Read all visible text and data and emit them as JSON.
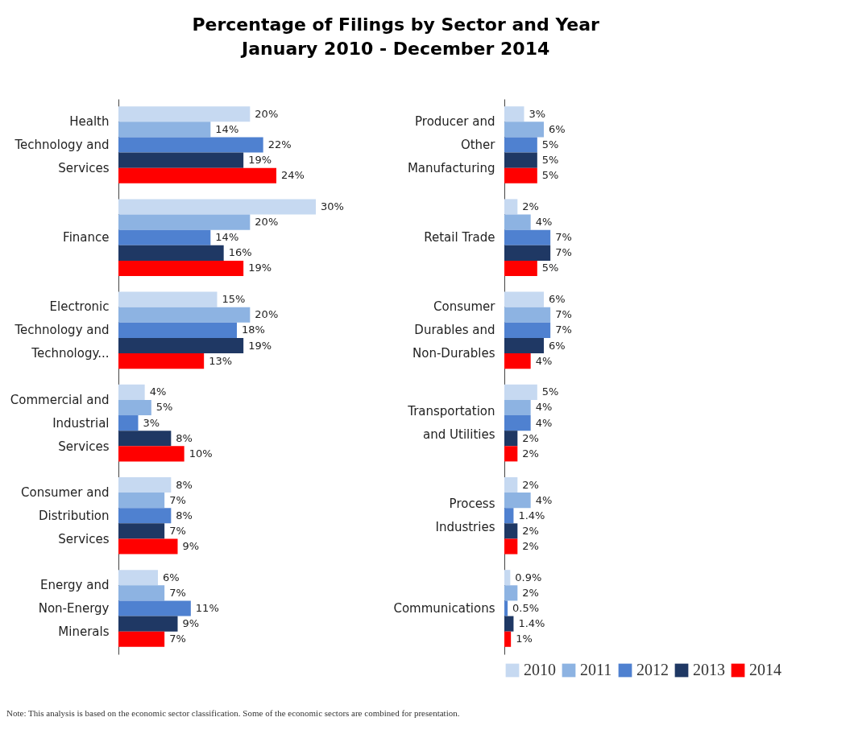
{
  "chart_data": [
    {
      "type": "bar",
      "orientation": "horizontal",
      "title": "Percentage of Filings by Sector and Year",
      "subtitle": "January 2010 - December 2014",
      "categories": [
        "Health Technology and Services",
        "Finance",
        "Electronic Technology and Technology...",
        "Commercial and Industrial Services",
        "Consumer and Distribution Services",
        "Energy and Non-Energy Minerals"
      ],
      "series": [
        {
          "color": "#c6d9f1",
          "values": [
            20,
            30,
            15,
            4,
            8,
            6
          ],
          "value_labels": [
            "20%",
            "30%",
            "15%",
            "4%",
            "8%",
            "6%"
          ]
        },
        {
          "color": "#8db3e2",
          "values": [
            14,
            20,
            20,
            5,
            7,
            7
          ],
          "value_labels": [
            "14%",
            "20%",
            "20%",
            "5%",
            "7%",
            "7%"
          ]
        },
        {
          "color": "#4f81d0",
          "values": [
            22,
            14,
            18,
            3,
            8,
            11
          ],
          "value_labels": [
            "22%",
            "14%",
            "18%",
            "3%",
            "8%",
            "11%"
          ]
        },
        {
          "color": "#1f3864",
          "values": [
            19,
            16,
            19,
            8,
            7,
            9
          ],
          "value_labels": [
            "19%",
            "16%",
            "19%",
            "8%",
            "7%",
            "9%"
          ]
        },
        {
          "color": "#ff0000",
          "values": [
            24,
            19,
            13,
            10,
            9,
            7
          ],
          "value_labels": [
            "24%",
            "19%",
            "13%",
            "10%",
            "9%",
            "7%"
          ]
        }
      ],
      "annotations": [
        "Note: This analysis is based on the economic sector classification. Some of the economic sectors are combined for presentation."
      ]
    },
    {
      "type": "bar",
      "orientation": "horizontal",
      "legend": "bottom",
      "categories": [
        "Producer and Other Manufacturing",
        "Retail Trade",
        "Consumer Durables and Non-Durables",
        "Transportation and Utilities",
        "Process Industries",
        "Communications"
      ],
      "series": [
        {
          "name": "2010",
          "color": "#c6d9f1",
          "values": [
            3,
            2,
            6,
            5,
            2,
            0.9
          ],
          "value_labels": [
            "3%",
            "2%",
            "6%",
            "5%",
            "2%",
            "0.9%"
          ]
        },
        {
          "name": "2011",
          "color": "#8db3e2",
          "values": [
            6,
            4,
            7,
            4,
            4,
            2
          ],
          "value_labels": [
            "6%",
            "4%",
            "7%",
            "4%",
            "4%",
            "2%"
          ]
        },
        {
          "name": "2012",
          "color": "#4f81d0",
          "values": [
            5,
            7,
            7,
            4,
            1.4,
            0.5
          ],
          "value_labels": [
            "5%",
            "7%",
            "7%",
            "4%",
            "1.4%",
            "0.5%"
          ]
        },
        {
          "name": "2013",
          "color": "#1f3864",
          "values": [
            5,
            7,
            6,
            2,
            2,
            1.4
          ],
          "value_labels": [
            "5%",
            "7%",
            "6%",
            "2%",
            "2%",
            "1.4%"
          ]
        },
        {
          "name": "2014",
          "color": "#ff0000",
          "values": [
            5,
            5,
            4,
            2,
            2,
            1
          ],
          "value_labels": [
            "5%",
            "5%",
            "4%",
            "2%",
            "2%",
            "1%"
          ]
        }
      ]
    }
  ]
}
